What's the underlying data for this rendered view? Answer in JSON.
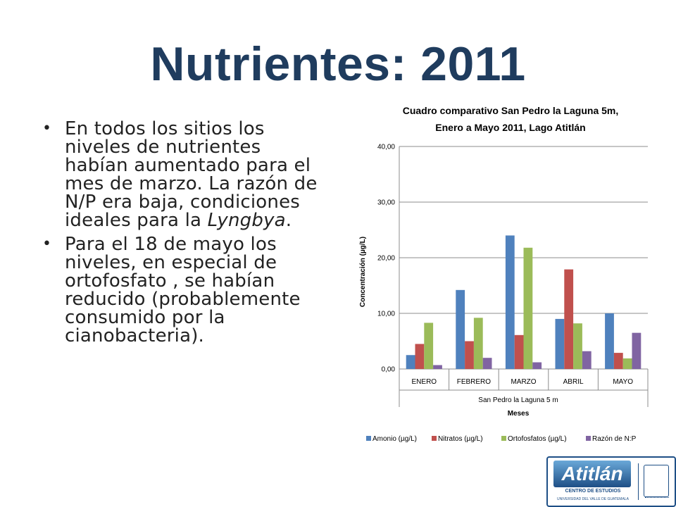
{
  "slide": {
    "title": "Nutrientes: 2011",
    "bullets": [
      {
        "before": "En todos los sitios los niveles de nutrientes habían aumentado para el mes de marzo. La razón de N/P era baja, condiciones ideales para la ",
        "italic": "Lyngbya",
        "after": "."
      },
      {
        "before": " Para el 18 de mayo los niveles, en especial de ortofosfato , se habían reducido (probablemente consumido por la cianobacteria).",
        "italic": "",
        "after": ""
      }
    ]
  },
  "logo": {
    "name": "Atitlán",
    "subtitle": "CENTRO DE ESTUDIOS",
    "university": "UNIVERSIDAD DEL VALLE DE GUATEMALA"
  },
  "chart_data": {
    "type": "bar",
    "title_line1": "Cuadro comparativo San Pedro la Laguna 5m,",
    "title_line2": "Enero a Mayo 2011, Lago Atitlán",
    "categories": [
      "ENERO",
      "FEBRERO",
      "MARZO",
      "ABRIL",
      "MAYO"
    ],
    "group_label": "San Pedro la Laguna 5 m",
    "xlabel": "Meses",
    "ylabel": "Concentración (µg/L)",
    "ylim": [
      0,
      40
    ],
    "yticks": [
      "0,00",
      "10,00",
      "20,00",
      "30,00",
      "40,00"
    ],
    "grid": true,
    "legend_position": "bottom",
    "series": [
      {
        "name": "Amonio (µg/L)",
        "color": "#4f81bd",
        "values": [
          2.5,
          14.2,
          24.0,
          9.0,
          10.0
        ]
      },
      {
        "name": "Nitratos (µg/L)",
        "color": "#c0504d",
        "values": [
          4.5,
          5.0,
          6.1,
          17.9,
          2.9
        ]
      },
      {
        "name": "Ortofosfatos (µg/L)",
        "color": "#9bbb59",
        "values": [
          8.3,
          9.2,
          21.8,
          8.2,
          1.9
        ]
      },
      {
        "name": "Razón de N:P",
        "color": "#8064a2",
        "values": [
          0.7,
          2.0,
          1.2,
          3.2,
          6.5
        ]
      }
    ]
  }
}
